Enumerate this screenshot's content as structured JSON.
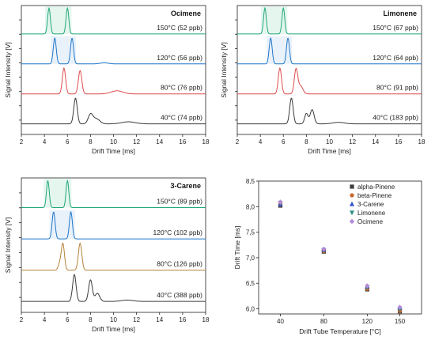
{
  "figure": {
    "colors": {
      "150": "#1fa77b",
      "120": "#1f77c9",
      "80": "#e04a4a",
      "40": "#3a3a3a",
      "80_3carene": "#b5813a",
      "band_150": "#cfeee0",
      "band_120": "#cfe0f5"
    }
  },
  "chart_data": [
    {
      "type": "line",
      "title": "Ocimene",
      "xlabel": "Drift Time [ms]",
      "ylabel": "Signal Intensity [V]",
      "xlim": [
        2,
        18
      ],
      "xticks": [
        "2",
        "4",
        "6",
        "8",
        "10",
        "12",
        "14",
        "16",
        "18"
      ],
      "series": [
        {
          "name": "150°C (52 ppb)",
          "temp": "150",
          "peaks": [
            [
              4.4,
              1.0,
              0.12
            ],
            [
              6.0,
              1.0,
              0.12
            ]
          ]
        },
        {
          "name": "120°C (56 ppb)",
          "temp": "120",
          "peaks": [
            [
              4.9,
              1.0,
              0.13
            ],
            [
              6.4,
              1.0,
              0.13
            ],
            [
              9.2,
              0.04,
              0.4
            ]
          ]
        },
        {
          "name": "80°C (76 ppb)",
          "temp": "80",
          "peaks": [
            [
              5.7,
              1.0,
              0.14
            ],
            [
              7.1,
              0.9,
              0.15
            ],
            [
              10.3,
              0.12,
              0.5
            ]
          ]
        },
        {
          "name": "40°C (74 ppb)",
          "temp": "40",
          "peaks": [
            [
              6.7,
              1.0,
              0.15
            ],
            [
              8.0,
              0.35,
              0.2
            ],
            [
              8.5,
              0.2,
              0.3
            ],
            [
              11.3,
              0.08,
              0.6
            ]
          ]
        }
      ]
    },
    {
      "type": "line",
      "title": "Limonene",
      "xlabel": "Drift Time [ms]",
      "ylabel": "Signal Intensity [V]",
      "xlim": [
        2,
        18
      ],
      "xticks": [
        "2",
        "4",
        "6",
        "8",
        "10",
        "12",
        "14",
        "16",
        "18"
      ],
      "series": [
        {
          "name": "150°C (67 ppb)",
          "temp": "150",
          "peaks": [
            [
              4.4,
              1.0,
              0.12
            ],
            [
              6.0,
              1.0,
              0.12
            ]
          ]
        },
        {
          "name": "120°C (64 ppb)",
          "temp": "120",
          "peaks": [
            [
              4.9,
              1.0,
              0.13
            ],
            [
              6.4,
              1.0,
              0.13
            ]
          ]
        },
        {
          "name": "80°C (91 ppb)",
          "temp": "80",
          "peaks": [
            [
              5.7,
              1.0,
              0.14
            ],
            [
              7.1,
              0.95,
              0.15
            ],
            [
              7.5,
              0.3,
              0.2
            ]
          ]
        },
        {
          "name": "40°C (183 ppb)",
          "temp": "40",
          "peaks": [
            [
              6.7,
              1.0,
              0.15
            ],
            [
              8.0,
              0.4,
              0.15
            ],
            [
              8.5,
              0.55,
              0.17
            ],
            [
              10.8,
              0.06,
              0.5
            ]
          ]
        }
      ]
    },
    {
      "type": "line",
      "title": "3-Carene",
      "xlabel": "Drift Time [ms]",
      "ylabel": "Signal Intensity [V]",
      "xlim": [
        2,
        18
      ],
      "xticks": [
        "2",
        "4",
        "6",
        "8",
        "10",
        "12",
        "14",
        "16",
        "18"
      ],
      "series": [
        {
          "name": "150°C (89 ppb)",
          "temp": "150",
          "peaks": [
            [
              4.3,
              1.0,
              0.12
            ],
            [
              6.0,
              1.0,
              0.12
            ]
          ]
        },
        {
          "name": "120°C (102 ppb)",
          "temp": "120",
          "peaks": [
            [
              4.8,
              1.0,
              0.13
            ],
            [
              6.3,
              1.0,
              0.13
            ]
          ]
        },
        {
          "name": "80°C (126 ppb)",
          "temp": "80",
          "peaks": [
            [
              5.6,
              1.0,
              0.14
            ],
            [
              5.3,
              0.2,
              0.12
            ],
            [
              7.1,
              1.0,
              0.15
            ]
          ]
        },
        {
          "name": "40°C (388 ppb)",
          "temp": "40",
          "peaks": [
            [
              6.6,
              1.0,
              0.15
            ],
            [
              8.0,
              0.8,
              0.16
            ],
            [
              8.6,
              0.3,
              0.2
            ],
            [
              11.2,
              0.05,
              0.5
            ]
          ]
        }
      ]
    },
    {
      "type": "scatter",
      "xlabel": "Drift Tube Temperature [°C]",
      "ylabel": "Drift Time [ms]",
      "categories": [
        "40",
        "80",
        "120",
        "150"
      ],
      "yticks": [
        "6,0",
        "6,5",
        "7,0",
        "7,5",
        "8,0",
        "8,5"
      ],
      "ylim": [
        5.9,
        8.5
      ],
      "legend_position": "top-right",
      "series": [
        {
          "name": "alpha-Pinene",
          "marker": "square",
          "color": "#3d3d3d",
          "values": [
            8.02,
            7.12,
            6.38,
            5.95
          ]
        },
        {
          "name": "beta-Pinene",
          "marker": "circle",
          "color": "#c8642c",
          "values": [
            8.04,
            7.13,
            6.39,
            5.96
          ]
        },
        {
          "name": "3-Carene",
          "marker": "triangle-up",
          "color": "#2f52c8",
          "values": [
            8.05,
            7.16,
            6.44,
            6.02
          ]
        },
        {
          "name": "Limonene",
          "marker": "triangle-down",
          "color": "#2e8f86",
          "values": [
            8.07,
            7.15,
            6.42,
            5.99
          ]
        },
        {
          "name": "Ocimene",
          "marker": "diamond",
          "color": "#b489d6",
          "values": [
            8.09,
            7.17,
            6.45,
            6.03
          ]
        }
      ]
    }
  ]
}
